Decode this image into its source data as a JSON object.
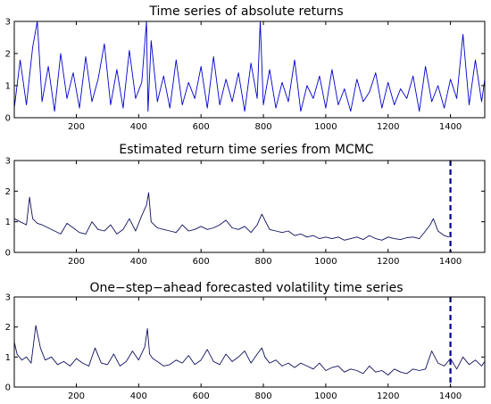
{
  "chart_data": [
    {
      "type": "line",
      "title": "Time series of absolute returns",
      "xlabel": "",
      "ylabel": "",
      "xlim": [
        1,
        1510
      ],
      "ylim": [
        0,
        3
      ],
      "xticks": [
        200,
        400,
        600,
        800,
        1000,
        1200,
        1400
      ],
      "yticks": [
        0,
        1,
        2,
        3
      ],
      "grid": false,
      "colors": {
        "series": "#0000cc"
      },
      "series": [
        {
          "x": [
            1,
            20,
            40,
            60,
            75,
            90,
            110,
            130,
            150,
            170,
            190,
            210,
            230,
            250,
            270,
            290,
            310,
            330,
            350,
            370,
            390,
            410,
            425,
            430,
            440,
            460,
            480,
            500,
            520,
            540,
            560,
            580,
            600,
            620,
            640,
            660,
            680,
            700,
            720,
            740,
            760,
            780,
            790,
            800,
            820,
            840,
            860,
            880,
            900,
            920,
            940,
            960,
            980,
            1000,
            1020,
            1040,
            1060,
            1080,
            1100,
            1120,
            1140,
            1160,
            1180,
            1200,
            1220,
            1240,
            1260,
            1280,
            1300,
            1320,
            1340,
            1360,
            1380,
            1400,
            1420,
            1440,
            1460,
            1480,
            1500,
            1510
          ],
          "values": [
            0.3,
            1.8,
            0.4,
            2.2,
            3.0,
            0.5,
            1.6,
            0.2,
            2.0,
            0.6,
            1.4,
            0.3,
            1.9,
            0.5,
            1.2,
            2.3,
            0.4,
            1.5,
            0.3,
            2.1,
            0.6,
            1.1,
            3.0,
            0.2,
            2.4,
            0.5,
            1.3,
            0.3,
            1.8,
            0.4,
            1.1,
            0.6,
            1.6,
            0.3,
            1.9,
            0.4,
            1.2,
            0.5,
            1.4,
            0.2,
            1.7,
            0.6,
            3.0,
            0.4,
            1.5,
            0.3,
            1.1,
            0.5,
            1.8,
            0.2,
            1.0,
            0.6,
            1.3,
            0.3,
            1.5,
            0.4,
            0.9,
            0.2,
            1.2,
            0.5,
            0.8,
            1.4,
            0.3,
            1.1,
            0.4,
            0.9,
            0.6,
            1.3,
            0.2,
            1.6,
            0.5,
            1.0,
            0.3,
            1.2,
            0.6,
            2.6,
            0.4,
            1.8,
            0.5,
            1.2
          ]
        }
      ]
    },
    {
      "type": "line",
      "title": "Estimated return time series from MCMC",
      "xlabel": "",
      "ylabel": "",
      "xlim": [
        1,
        1510
      ],
      "ylim": [
        0,
        3
      ],
      "xticks": [
        200,
        400,
        600,
        800,
        1000,
        1200,
        1400
      ],
      "yticks": [
        0,
        1,
        2,
        3
      ],
      "grid": false,
      "vline": 1400,
      "colors": {
        "series": "#101060",
        "vline": "#00008b"
      },
      "series": [
        {
          "x": [
            1,
            20,
            40,
            50,
            60,
            75,
            90,
            110,
            130,
            150,
            170,
            190,
            210,
            230,
            250,
            270,
            290,
            310,
            330,
            350,
            370,
            390,
            410,
            425,
            432,
            440,
            460,
            480,
            500,
            520,
            540,
            560,
            580,
            600,
            620,
            640,
            660,
            680,
            700,
            720,
            740,
            760,
            780,
            795,
            800,
            820,
            840,
            860,
            880,
            900,
            920,
            940,
            960,
            980,
            1000,
            1020,
            1040,
            1060,
            1080,
            1100,
            1120,
            1140,
            1160,
            1180,
            1200,
            1220,
            1240,
            1260,
            1280,
            1300,
            1320,
            1335,
            1345,
            1360,
            1380,
            1395
          ],
          "values": [
            1.1,
            1.0,
            0.9,
            1.8,
            1.1,
            0.95,
            0.9,
            0.8,
            0.7,
            0.6,
            0.95,
            0.8,
            0.65,
            0.6,
            1.0,
            0.75,
            0.7,
            0.9,
            0.6,
            0.75,
            1.1,
            0.7,
            1.2,
            1.55,
            1.95,
            1.0,
            0.8,
            0.75,
            0.7,
            0.65,
            0.9,
            0.7,
            0.75,
            0.85,
            0.75,
            0.8,
            0.9,
            1.05,
            0.8,
            0.75,
            0.85,
            0.65,
            0.9,
            1.25,
            1.15,
            0.75,
            0.7,
            0.65,
            0.7,
            0.55,
            0.6,
            0.5,
            0.55,
            0.45,
            0.5,
            0.45,
            0.5,
            0.4,
            0.45,
            0.5,
            0.42,
            0.55,
            0.45,
            0.4,
            0.5,
            0.45,
            0.42,
            0.48,
            0.5,
            0.45,
            0.7,
            0.9,
            1.1,
            0.7,
            0.55,
            0.5
          ]
        }
      ]
    },
    {
      "type": "line",
      "title": "One−step−ahead forecasted volatility time series",
      "xlabel": "",
      "ylabel": "",
      "xlim": [
        1,
        1510
      ],
      "ylim": [
        0,
        3
      ],
      "xticks": [
        200,
        400,
        600,
        800,
        1000,
        1200,
        1400
      ],
      "yticks": [
        0,
        1,
        2,
        3
      ],
      "grid": false,
      "vline": 1400,
      "colors": {
        "series": "#101060",
        "vline": "#00008b"
      },
      "series": [
        {
          "x": [
            1,
            10,
            25,
            40,
            55,
            70,
            85,
            100,
            120,
            140,
            160,
            180,
            200,
            220,
            240,
            260,
            280,
            300,
            320,
            340,
            360,
            380,
            400,
            420,
            428,
            435,
            445,
            460,
            480,
            500,
            520,
            540,
            560,
            580,
            600,
            620,
            640,
            660,
            680,
            700,
            720,
            740,
            760,
            780,
            795,
            805,
            820,
            840,
            860,
            880,
            900,
            920,
            940,
            960,
            980,
            1000,
            1020,
            1040,
            1060,
            1080,
            1100,
            1120,
            1140,
            1160,
            1180,
            1200,
            1220,
            1240,
            1260,
            1280,
            1300,
            1320,
            1340,
            1360,
            1380,
            1400,
            1420,
            1440,
            1460,
            1480,
            1500,
            1510
          ],
          "values": [
            1.5,
            1.1,
            0.9,
            1.0,
            0.8,
            2.05,
            1.3,
            0.9,
            1.0,
            0.75,
            0.85,
            0.7,
            0.95,
            0.8,
            0.7,
            1.3,
            0.8,
            0.75,
            1.1,
            0.7,
            0.85,
            1.2,
            0.9,
            1.35,
            1.95,
            1.1,
            0.95,
            0.85,
            0.7,
            0.75,
            0.9,
            0.8,
            1.05,
            0.75,
            0.9,
            1.25,
            0.85,
            0.75,
            1.1,
            0.85,
            1.0,
            1.2,
            0.8,
            1.1,
            1.3,
            1.0,
            0.8,
            0.9,
            0.7,
            0.8,
            0.65,
            0.8,
            0.7,
            0.6,
            0.8,
            0.55,
            0.65,
            0.7,
            0.5,
            0.6,
            0.55,
            0.45,
            0.7,
            0.5,
            0.55,
            0.4,
            0.6,
            0.5,
            0.45,
            0.6,
            0.55,
            0.6,
            1.2,
            0.8,
            0.7,
            0.95,
            0.6,
            1.0,
            0.75,
            0.9,
            0.7,
            0.85
          ]
        }
      ]
    }
  ]
}
